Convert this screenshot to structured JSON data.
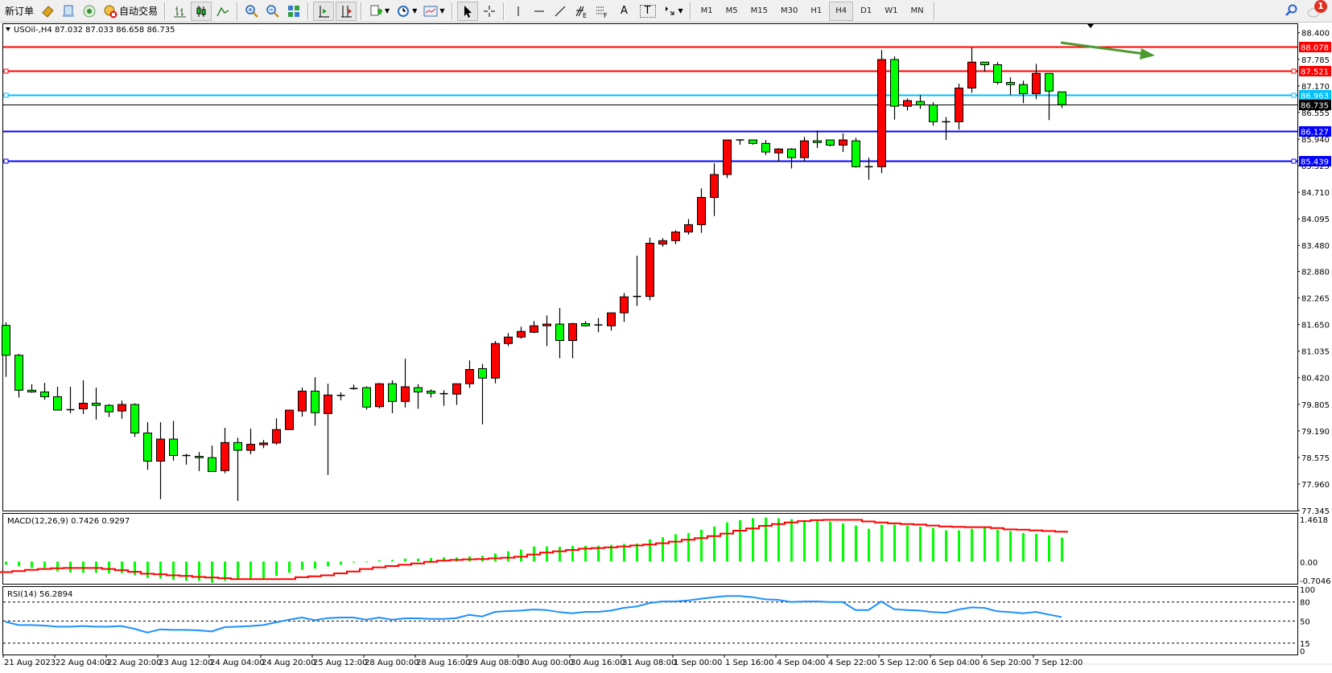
{
  "toolbar": {
    "new_order": "新订单",
    "auto_trading": "自动交易",
    "timeframes": [
      "M1",
      "M5",
      "M15",
      "M30",
      "H1",
      "H4",
      "D1",
      "W1",
      "MN"
    ],
    "active_timeframe": "H4",
    "fib_e": "E",
    "fib_f": "F",
    "text_tool": "A",
    "text_label_tool": "T",
    "notification_count": "1",
    "icons": [
      "history-icon",
      "market-watch-icon",
      "signals-icon",
      "auto-trading-icon",
      "bar-chart-icon",
      "candlestick-icon",
      "line-chart-icon",
      "zoom-in-icon",
      "zoom-out-icon",
      "tile-windows-icon",
      "auto-scroll-icon",
      "chart-shift-icon",
      "indicators-icon",
      "periods-icon",
      "templates-icon",
      "cursor-icon",
      "crosshair-icon",
      "vertical-line-icon",
      "horizontal-line-icon",
      "trendline-icon",
      "fibonacci-icon",
      "fibonacci-fan-icon",
      "text-icon",
      "text-label-icon",
      "arrows-icon",
      "search-icon",
      "notifications-icon"
    ]
  },
  "chart": {
    "header": "USOil-,H4  87.032 87.033 86.658 86.735",
    "symbol": "USOil-",
    "timeframe": "H4",
    "ohlc_header": {
      "open": 87.032,
      "high": 87.033,
      "low": 86.658,
      "close": 86.735
    },
    "colors": {
      "bull": "#ff0000",
      "bear": "#00ff00",
      "outline": "#000000"
    },
    "price_axis": [
      "88.400",
      "87.785",
      "87.170",
      "86.555",
      "85.940",
      "85.325",
      "84.710",
      "84.095",
      "83.480",
      "82.880",
      "82.265",
      "81.650",
      "81.035",
      "80.420",
      "79.805",
      "79.190",
      "78.575",
      "77.960",
      "77.345"
    ],
    "time_axis": [
      "21 Aug 2023",
      "22 Aug 04:00",
      "22 Aug 20:00",
      "23 Aug 12:00",
      "24 Aug 04:00",
      "24 Aug 20:00",
      "25 Aug 12:00",
      "28 Aug 00:00",
      "28 Aug 16:00",
      "29 Aug 08:00",
      "30 Aug 00:00",
      "30 Aug 16:00",
      "31 Aug 08:00",
      "1 Sep 00:00",
      "1 Sep 16:00",
      "4 Sep 04:00",
      "4 Sep 22:00",
      "5 Sep 12:00",
      "6 Sep 04:00",
      "6 Sep 20:00",
      "7 Sep 12:00"
    ],
    "hlines": [
      {
        "value": "88.078",
        "color": "#ff0000",
        "label_text": "#ffffff",
        "selected": false
      },
      {
        "value": "87.521",
        "color": "#ff0000",
        "label_text": "#ffffff",
        "selected": true
      },
      {
        "value": "86.963",
        "color": "#00bfff",
        "label_text": "#ffffff",
        "selected": true
      },
      {
        "value": "86.735",
        "color": "#000000",
        "label_text": "#ffffff",
        "selected": false,
        "bid": true
      },
      {
        "value": "86.127",
        "color": "#0000ff",
        "label_text": "#ffffff",
        "selected": false
      },
      {
        "value": "85.439",
        "color": "#0000ff",
        "label_text": "#ffffff",
        "selected": true
      }
    ],
    "trend_arrow": {
      "color": "#4a9a30",
      "direction": "up-right"
    },
    "candles": [
      [
        81.63,
        81.7,
        80.44,
        80.94
      ],
      [
        80.94,
        80.97,
        79.96,
        80.13
      ],
      [
        80.13,
        80.27,
        80.07,
        80.09
      ],
      [
        80.09,
        80.3,
        79.91,
        79.98
      ],
      [
        79.98,
        80.21,
        79.67,
        79.67
      ],
      [
        79.68,
        80.21,
        79.6,
        79.68
      ],
      [
        79.7,
        80.36,
        79.58,
        79.83
      ],
      [
        79.83,
        80.19,
        79.45,
        79.78
      ],
      [
        79.78,
        79.81,
        79.51,
        79.63
      ],
      [
        79.65,
        79.89,
        79.47,
        79.8
      ],
      [
        79.8,
        79.83,
        79.05,
        79.14
      ],
      [
        79.14,
        79.39,
        78.29,
        78.49
      ],
      [
        78.49,
        79.39,
        77.61,
        79.0
      ],
      [
        79.0,
        79.42,
        78.5,
        78.62
      ],
      [
        78.62,
        78.66,
        78.41,
        78.62
      ],
      [
        78.6,
        78.7,
        78.26,
        78.57
      ],
      [
        78.57,
        78.85,
        78.25,
        78.25
      ],
      [
        78.27,
        79.26,
        78.21,
        78.92
      ],
      [
        78.92,
        79.03,
        77.57,
        78.74
      ],
      [
        78.74,
        79.24,
        78.65,
        78.88
      ],
      [
        78.87,
        78.98,
        78.79,
        78.91
      ],
      [
        78.91,
        79.48,
        78.87,
        79.22
      ],
      [
        79.22,
        79.68,
        79.22,
        79.67
      ],
      [
        79.65,
        80.19,
        79.52,
        80.11
      ],
      [
        80.11,
        80.43,
        79.31,
        79.61
      ],
      [
        79.59,
        80.28,
        78.17,
        80.02
      ],
      [
        80.01,
        80.08,
        79.9,
        80.01
      ],
      [
        80.17,
        80.26,
        80.14,
        80.17
      ],
      [
        80.19,
        80.22,
        79.68,
        79.74
      ],
      [
        79.75,
        80.3,
        79.71,
        80.28
      ],
      [
        80.28,
        80.36,
        79.6,
        79.87
      ],
      [
        79.87,
        80.86,
        79.73,
        80.21
      ],
      [
        80.19,
        80.27,
        79.7,
        80.09
      ],
      [
        80.11,
        80.15,
        79.96,
        80.06
      ],
      [
        80.05,
        80.13,
        79.77,
        80.05
      ],
      [
        80.04,
        80.28,
        79.79,
        80.28
      ],
      [
        80.28,
        80.82,
        80.18,
        80.61
      ],
      [
        80.63,
        80.74,
        79.34,
        80.41
      ],
      [
        80.41,
        81.27,
        80.29,
        81.21
      ],
      [
        81.21,
        81.45,
        81.15,
        81.36
      ],
      [
        81.36,
        81.6,
        81.32,
        81.49
      ],
      [
        81.47,
        81.73,
        81.45,
        81.62
      ],
      [
        81.62,
        81.86,
        81.15,
        81.66
      ],
      [
        81.66,
        82.03,
        80.87,
        81.28
      ],
      [
        81.28,
        81.69,
        80.87,
        81.67
      ],
      [
        81.67,
        81.73,
        81.6,
        81.62
      ],
      [
        81.64,
        81.8,
        81.47,
        81.64
      ],
      [
        81.62,
        81.92,
        81.51,
        81.92
      ],
      [
        81.92,
        82.38,
        81.71,
        82.29
      ],
      [
        82.3,
        83.24,
        82.08,
        82.3
      ],
      [
        82.3,
        83.66,
        82.21,
        83.53
      ],
      [
        83.51,
        83.65,
        83.45,
        83.59
      ],
      [
        83.59,
        83.83,
        83.51,
        83.79
      ],
      [
        83.79,
        84.09,
        83.73,
        83.96
      ],
      [
        83.96,
        84.8,
        83.77,
        84.59
      ],
      [
        84.59,
        85.38,
        84.16,
        85.12
      ],
      [
        85.12,
        85.93,
        85.04,
        85.92
      ],
      [
        85.92,
        85.92,
        85.81,
        85.92
      ],
      [
        85.92,
        85.92,
        85.81,
        85.84
      ],
      [
        85.84,
        85.92,
        85.57,
        85.64
      ],
      [
        85.62,
        85.73,
        85.41,
        85.71
      ],
      [
        85.71,
        85.73,
        85.26,
        85.51
      ],
      [
        85.51,
        85.99,
        85.43,
        85.9
      ],
      [
        85.9,
        86.14,
        85.73,
        85.86
      ],
      [
        85.92,
        85.92,
        85.77,
        85.8
      ],
      [
        85.8,
        86.07,
        85.64,
        85.92
      ],
      [
        85.9,
        85.97,
        85.28,
        85.3
      ],
      [
        85.3,
        85.51,
        85.0,
        85.3
      ],
      [
        85.3,
        88.0,
        85.15,
        87.78
      ],
      [
        87.78,
        87.85,
        86.39,
        86.7
      ],
      [
        86.7,
        86.88,
        86.6,
        86.83
      ],
      [
        86.81,
        86.96,
        86.64,
        86.73
      ],
      [
        86.73,
        86.79,
        86.25,
        86.34
      ],
      [
        86.34,
        86.45,
        85.92,
        86.34
      ],
      [
        86.34,
        87.22,
        86.16,
        87.12
      ],
      [
        87.12,
        88.05,
        87.01,
        87.72
      ],
      [
        87.72,
        87.72,
        87.5,
        87.66
      ],
      [
        87.66,
        87.72,
        87.2,
        87.25
      ],
      [
        87.25,
        87.37,
        86.96,
        87.2
      ],
      [
        87.2,
        87.29,
        86.77,
        86.99
      ],
      [
        86.99,
        87.68,
        86.86,
        87.46
      ],
      [
        87.46,
        87.46,
        86.38,
        87.05
      ],
      [
        87.032,
        87.033,
        86.658,
        86.735
      ]
    ]
  },
  "macd": {
    "label": "MACD(12,26,9) 0.7426 0.9297",
    "axis": [
      "1.4618",
      "0.00",
      "-0.7046"
    ],
    "range": [
      -0.7046,
      1.4618
    ],
    "hist_color": "#00ff00",
    "signal_color": "#ff0000",
    "main": [
      -0.1,
      -0.15,
      -0.2,
      -0.2,
      -0.31,
      -0.34,
      -0.35,
      -0.35,
      -0.37,
      -0.36,
      -0.42,
      -0.51,
      -0.53,
      -0.57,
      -0.6,
      -0.6,
      -0.66,
      -0.6,
      -0.56,
      -0.53,
      -0.53,
      -0.45,
      -0.35,
      -0.26,
      -0.22,
      -0.15,
      -0.1,
      -0.03,
      -0.02,
      0.04,
      0.05,
      0.09,
      0.09,
      0.11,
      0.13,
      0.13,
      0.16,
      0.18,
      0.25,
      0.32,
      0.37,
      0.47,
      0.47,
      0.46,
      0.49,
      0.49,
      0.49,
      0.52,
      0.55,
      0.56,
      0.69,
      0.76,
      0.85,
      0.89,
      0.99,
      1.09,
      1.22,
      1.29,
      1.35,
      1.37,
      1.35,
      1.32,
      1.29,
      1.27,
      1.25,
      1.19,
      1.12,
      1.02,
      1.15,
      1.15,
      1.12,
      1.09,
      1.05,
      0.97,
      0.97,
      1.02,
      1.05,
      0.99,
      0.95,
      0.89,
      0.86,
      0.82,
      0.7426
    ],
    "signal": [
      -0.33,
      -0.3,
      -0.26,
      -0.23,
      -0.21,
      -0.2,
      -0.2,
      -0.2,
      -0.23,
      -0.27,
      -0.32,
      -0.38,
      -0.4,
      -0.43,
      -0.45,
      -0.48,
      -0.5,
      -0.52,
      -0.55,
      -0.55,
      -0.55,
      -0.55,
      -0.55,
      -0.49,
      -0.46,
      -0.43,
      -0.37,
      -0.31,
      -0.23,
      -0.18,
      -0.14,
      -0.1,
      -0.06,
      -0.01,
      0.03,
      0.05,
      0.07,
      0.08,
      0.1,
      0.12,
      0.15,
      0.22,
      0.28,
      0.32,
      0.36,
      0.4,
      0.42,
      0.44,
      0.47,
      0.5,
      0.53,
      0.57,
      0.62,
      0.68,
      0.73,
      0.79,
      0.87,
      0.96,
      1.03,
      1.11,
      1.17,
      1.22,
      1.26,
      1.29,
      1.3,
      1.3,
      1.3,
      1.25,
      1.22,
      1.19,
      1.17,
      1.15,
      1.12,
      1.09,
      1.08,
      1.07,
      1.07,
      1.04,
      1.0,
      0.99,
      0.97,
      0.95,
      0.9297
    ]
  },
  "rsi": {
    "label": "RSI(14) 56.2894",
    "axis": [
      "100",
      "80",
      "50",
      "15",
      "0"
    ],
    "levels": [
      80,
      50,
      15
    ],
    "color": "#1e90ff",
    "values": [
      48.7,
      43.6,
      43.6,
      42.8,
      41.1,
      41.1,
      42.0,
      41.1,
      41.1,
      42.0,
      37.7,
      31.8,
      36.9,
      36.0,
      36.0,
      35.2,
      33.5,
      40.3,
      41.1,
      42.0,
      43.6,
      47.9,
      52.1,
      55.5,
      51.3,
      54.7,
      55.5,
      55.5,
      52.1,
      55.5,
      52.1,
      54.2,
      54.2,
      53.4,
      53.4,
      54.7,
      59.7,
      57.2,
      64.4,
      65.7,
      66.5,
      68.2,
      67.4,
      64.0,
      62.3,
      64.4,
      64.4,
      66.5,
      70.8,
      72.9,
      78.4,
      80.9,
      80.9,
      82.6,
      85.2,
      87.7,
      89.4,
      89.4,
      87.7,
      84.3,
      83.5,
      80.1,
      80.9,
      80.9,
      80.1,
      80.1,
      67.4,
      67.4,
      80.9,
      68.6,
      67.4,
      66.5,
      64.0,
      63.1,
      68.2,
      71.6,
      70.8,
      65.3,
      64.0,
      62.3,
      64.4,
      60.2,
      56.2894
    ]
  }
}
